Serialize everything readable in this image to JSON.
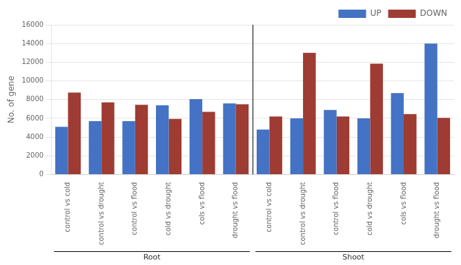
{
  "chart_data": {
    "type": "bar",
    "categories": [
      "control vs cold",
      "control vs drought",
      "control vs flood",
      "cold vs drought",
      "cols vs flood",
      "drought vs flood",
      "control vs cold",
      "control vs drought",
      "control vs flood",
      "cold vs drought",
      "cols vs flood",
      "drought vs flood"
    ],
    "groups": [
      "Root",
      "Root",
      "Root",
      "Root",
      "Root",
      "Root",
      "Shoot",
      "Shoot",
      "Shoot",
      "Shoot",
      "Shoot",
      "Shoot"
    ],
    "series": [
      {
        "name": "UP",
        "color": "#4472C4",
        "values": [
          5100,
          5700,
          5700,
          7400,
          8050,
          7600,
          4800,
          6000,
          6900,
          6000,
          8700,
          14000
        ]
      },
      {
        "name": "DOWN",
        "color": "#9E3B32",
        "values": [
          8750,
          7700,
          7450,
          5950,
          6700,
          7500,
          6200,
          13000,
          6200,
          11850,
          6450,
          6050
        ]
      }
    ],
    "ylabel": "No. of gene",
    "ylim": [
      0,
      16000
    ],
    "yticks": [
      0,
      2000,
      4000,
      6000,
      8000,
      10000,
      12000,
      14000,
      16000
    ],
    "grid": "y",
    "legend": "upper right"
  }
}
